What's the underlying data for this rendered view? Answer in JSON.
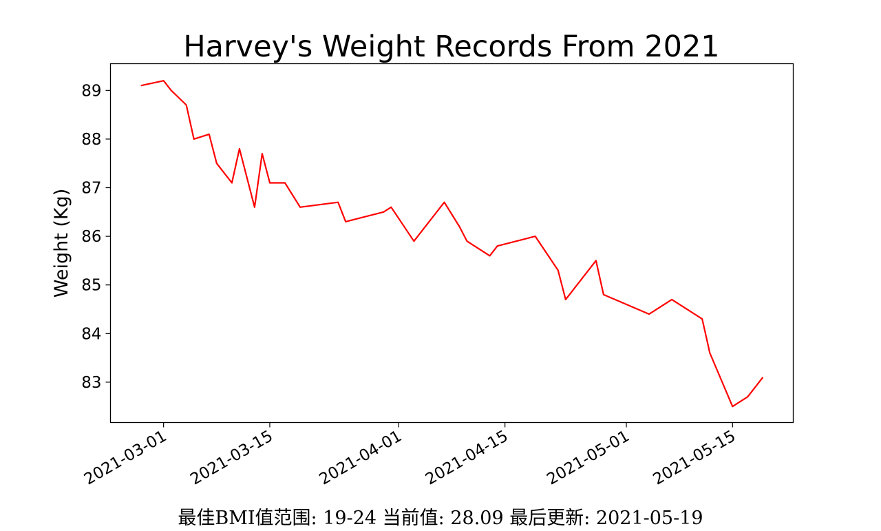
{
  "chart_data": {
    "type": "line",
    "title": "Harvey's Weight Records From 2021",
    "xlabel": "",
    "ylabel": "Weight (Kg)",
    "x_ticks": [
      "2021-03-01",
      "2021-03-15",
      "2021-04-01",
      "2021-04-15",
      "2021-05-01",
      "2021-05-15"
    ],
    "y_ticks": [
      83,
      84,
      85,
      86,
      87,
      88,
      89
    ],
    "xlim": [
      "2021-02-22",
      "2021-05-23"
    ],
    "ylim": [
      82.17,
      89.55
    ],
    "grid": false,
    "series": [
      {
        "color": "#ff0000",
        "points": [
          {
            "x": "2021-02-26",
            "y": 89.1
          },
          {
            "x": "2021-03-01",
            "y": 89.2
          },
          {
            "x": "2021-03-02",
            "y": 89.0
          },
          {
            "x": "2021-03-04",
            "y": 88.7
          },
          {
            "x": "2021-03-05",
            "y": 88.0
          },
          {
            "x": "2021-03-07",
            "y": 88.1
          },
          {
            "x": "2021-03-08",
            "y": 87.5
          },
          {
            "x": "2021-03-10",
            "y": 87.1
          },
          {
            "x": "2021-03-11",
            "y": 87.8
          },
          {
            "x": "2021-03-13",
            "y": 86.6
          },
          {
            "x": "2021-03-14",
            "y": 87.7
          },
          {
            "x": "2021-03-15",
            "y": 87.1
          },
          {
            "x": "2021-03-17",
            "y": 87.1
          },
          {
            "x": "2021-03-19",
            "y": 86.6
          },
          {
            "x": "2021-03-24",
            "y": 86.7
          },
          {
            "x": "2021-03-25",
            "y": 86.3
          },
          {
            "x": "2021-03-30",
            "y": 86.5
          },
          {
            "x": "2021-03-31",
            "y": 86.6
          },
          {
            "x": "2021-04-03",
            "y": 85.9
          },
          {
            "x": "2021-04-04",
            "y": 86.1
          },
          {
            "x": "2021-04-07",
            "y": 86.7
          },
          {
            "x": "2021-04-09",
            "y": 86.2
          },
          {
            "x": "2021-04-10",
            "y": 85.9
          },
          {
            "x": "2021-04-13",
            "y": 85.6
          },
          {
            "x": "2021-04-14",
            "y": 85.8
          },
          {
            "x": "2021-04-19",
            "y": 86.0
          },
          {
            "x": "2021-04-22",
            "y": 85.3
          },
          {
            "x": "2021-04-23",
            "y": 84.7
          },
          {
            "x": "2021-04-27",
            "y": 85.5
          },
          {
            "x": "2021-04-28",
            "y": 84.8
          },
          {
            "x": "2021-05-04",
            "y": 84.4
          },
          {
            "x": "2021-05-07",
            "y": 84.7
          },
          {
            "x": "2021-05-11",
            "y": 84.3
          },
          {
            "x": "2021-05-12",
            "y": 83.6
          },
          {
            "x": "2021-05-15",
            "y": 82.5
          },
          {
            "x": "2021-05-17",
            "y": 82.7
          },
          {
            "x": "2021-05-19",
            "y": 83.1
          }
        ]
      }
    ]
  },
  "footer": {
    "text": "最佳BMI值范围: 19-24 当前值: 28.09 最后更新: 2021-05-19"
  }
}
